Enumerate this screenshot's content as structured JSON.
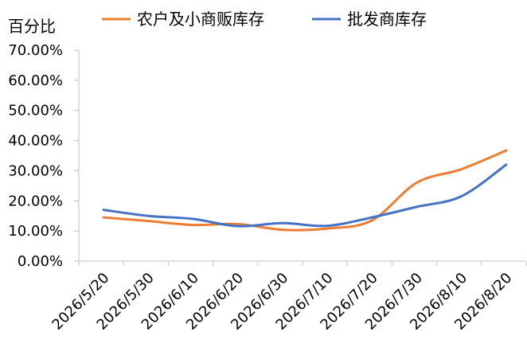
{
  "chart_data": {
    "type": "line",
    "title": "",
    "ylabel": "百分比",
    "xlabel": "",
    "ylim": [
      0,
      0.7
    ],
    "y_ticks": [
      "0.00%",
      "10.00%",
      "20.00%",
      "30.00%",
      "40.00%",
      "50.00%",
      "60.00%",
      "70.00%"
    ],
    "categories": [
      "2026/5/20",
      "2026/5/30",
      "2026/6/10",
      "2026/6/20",
      "2026/6/30",
      "2026/7/10",
      "2026/7/20",
      "2026/7/30",
      "2026/8/10",
      "2026/8/20"
    ],
    "series": [
      {
        "name": "农户及小商贩库存",
        "color": "#ED7D31",
        "values": [
          0.145,
          0.133,
          0.12,
          0.123,
          0.104,
          0.108,
          0.135,
          0.26,
          0.305,
          0.367
        ]
      },
      {
        "name": "批发商库存",
        "color": "#4472C4",
        "values": [
          0.17,
          0.15,
          0.14,
          0.116,
          0.126,
          0.117,
          0.145,
          0.18,
          0.215,
          0.32
        ]
      }
    ],
    "grid": false,
    "legend_position": "top"
  }
}
